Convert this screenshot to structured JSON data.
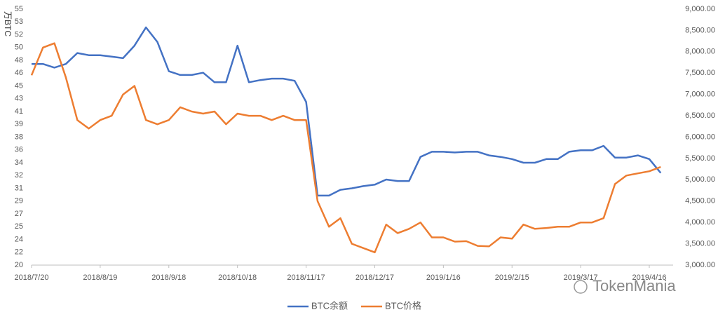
{
  "chart_data": {
    "type": "line",
    "y_label": "万BTC",
    "watermark": "TokenMania",
    "categories": [
      "2018/7/20",
      null,
      null,
      null,
      null,
      null,
      "2018/8/19",
      null,
      null,
      null,
      null,
      null,
      "2018/9/18",
      null,
      null,
      null,
      null,
      null,
      "2018/10/18",
      null,
      null,
      null,
      null,
      null,
      "2018/11/17",
      null,
      null,
      null,
      null,
      null,
      "2018/12/17",
      null,
      null,
      null,
      null,
      null,
      "2019/1/16",
      null,
      null,
      null,
      null,
      null,
      "2019/2/15",
      null,
      null,
      null,
      null,
      null,
      "2019/3/17",
      null,
      null,
      null,
      null,
      null,
      "2019/4/16",
      null
    ],
    "series": [
      {
        "name": "BTC余额",
        "color": "#4472c4",
        "values": [
          47.5,
          47.5,
          47,
          47.5,
          49,
          48.7,
          48.7,
          48.5,
          48.3,
          50,
          52.5,
          50.5,
          46.5,
          46,
          46,
          46.3,
          45,
          45,
          50,
          45,
          45.3,
          45.5,
          45.5,
          45.2,
          42.3,
          29.5,
          29.5,
          30.3,
          30.5,
          30.8,
          31,
          31.7,
          31.5,
          31.5,
          34.8,
          35.5,
          35.5,
          35.4,
          35.5,
          35.5,
          35,
          34.8,
          34.5,
          34,
          34,
          34.5,
          34.5,
          35.5,
          35.7,
          35.7,
          36.3,
          34.7,
          34.7,
          35,
          34.5,
          32.6
        ]
      },
      {
        "name": "BTC价格",
        "color": "#ed7d31",
        "axis": "y2",
        "values": [
          7450,
          8100,
          8200,
          7400,
          6400,
          6200,
          6400,
          6500,
          7000,
          7200,
          6400,
          6300,
          6400,
          6700,
          6600,
          6550,
          6600,
          6300,
          6550,
          6500,
          6500,
          6400,
          6500,
          6400,
          6400,
          4500,
          3900,
          4100,
          3500,
          3400,
          3300,
          3950,
          3750,
          3850,
          4000,
          3650,
          3650,
          3550,
          3560,
          3450,
          3440,
          3650,
          3620,
          3950,
          3850,
          3870,
          3900,
          3900,
          4000,
          4000,
          4100,
          4900,
          5100,
          5150,
          5200,
          5300
        ]
      }
    ],
    "ylim": [
      20,
      55
    ],
    "yticks": [
      20,
      {
        "value": 21.75,
        "label": "22"
      },
      {
        "value": 23.5,
        "label": "24"
      },
      {
        "value": 25.25,
        "label": "25"
      },
      27,
      {
        "value": 28.75,
        "label": "29"
      },
      {
        "value": 30.5,
        "label": "31"
      },
      {
        "value": 32.25,
        "label": "32"
      },
      34,
      {
        "value": 35.75,
        "label": "36"
      },
      {
        "value": 37.5,
        "label": "38"
      },
      {
        "value": 39.25,
        "label": "39"
      },
      41,
      {
        "value": 42.75,
        "label": "43"
      },
      {
        "value": 44.5,
        "label": "45"
      },
      {
        "value": 46.25,
        "label": "46"
      },
      48,
      {
        "value": 49.75,
        "label": "50"
      },
      {
        "value": 51.5,
        "label": "52"
      },
      {
        "value": 53.25,
        "label": "53"
      },
      55
    ],
    "y2lim": [
      3000,
      9000
    ],
    "y2ticks": [
      {
        "value": 3000,
        "label": "3,000.00"
      },
      {
        "value": 3500,
        "label": "3,500.00"
      },
      {
        "value": 4000,
        "label": "4,000.00"
      },
      {
        "value": 4500,
        "label": "4,500.00"
      },
      {
        "value": 5000,
        "label": "5,000.00"
      },
      {
        "value": 5500,
        "label": "5,500.00"
      },
      {
        "value": 6000,
        "label": "6,000.00"
      },
      {
        "value": 6500,
        "label": "6,500.00"
      },
      {
        "value": 7000,
        "label": "7,000.00"
      },
      {
        "value": 7500,
        "label": "7,500.00"
      },
      {
        "value": 8000,
        "label": "8,000.00"
      },
      {
        "value": 8500,
        "label": "8,500.00"
      },
      {
        "value": 9000,
        "label": "9,000.00"
      }
    ],
    "legend": "bottom"
  }
}
